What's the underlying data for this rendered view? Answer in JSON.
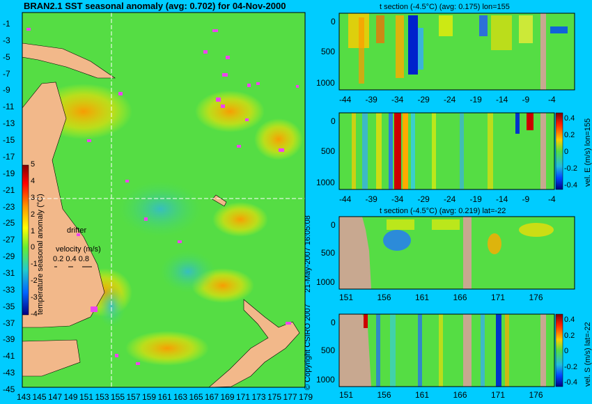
{
  "chart_data": [
    {
      "type": "heatmap",
      "title": "BRAN2.1 SST seasonal anomaly (avg: 0.702) for 04-Nov-2000",
      "x_ticks": [
        "143",
        "145",
        "147",
        "149",
        "151",
        "153",
        "155",
        "157",
        "159",
        "161",
        "163",
        "165",
        "167",
        "169",
        "171",
        "173",
        "175",
        "177",
        "179"
      ],
      "y_ticks": [
        "-1",
        "-3",
        "-5",
        "-7",
        "-9",
        "-11",
        "-13",
        "-15",
        "-17",
        "-19",
        "-21",
        "-23",
        "-25",
        "-27",
        "-29",
        "-31",
        "-33",
        "-35",
        "-37",
        "-39",
        "-41",
        "-43",
        "-45"
      ],
      "colorbar": {
        "label": "temperature seasonal anomaly (°C)",
        "ticks": [
          "5",
          "4",
          "3",
          "2",
          "1",
          "0",
          "-1",
          "-2",
          "-3",
          "-4"
        ]
      },
      "legend": {
        "drifter": "drifter",
        "velocity_label": "velocity (m/s)",
        "velocity_values": "0.2 0.4 0.8"
      },
      "crosshair": {
        "lon": 155,
        "lat": -22
      }
    },
    {
      "type": "heatmap",
      "title": "t section (-4.5°C) (avg: 0.175) lon=155",
      "x_ticks": [
        "-44",
        "-39",
        "-34",
        "-29",
        "-24",
        "-19",
        "-14",
        "-9",
        "-4"
      ],
      "y_ticks": [
        "0",
        "500",
        "1000"
      ]
    },
    {
      "type": "heatmap",
      "title": "vel. E (m/s) lon=155",
      "x_ticks": [
        "-44",
        "-39",
        "-34",
        "-29",
        "-24",
        "-19",
        "-14",
        "-9",
        "-4"
      ],
      "y_ticks": [
        "0",
        "500",
        "1000"
      ],
      "colorbar": {
        "label": "vel. E (m/s) lon=155",
        "ticks": [
          "0.4",
          "0.2",
          "0",
          "-0.2",
          "-0.4"
        ]
      }
    },
    {
      "type": "heatmap",
      "title": "t section (-4.5°C) (avg: 0.219) lat=-22",
      "x_ticks": [
        "151",
        "156",
        "161",
        "166",
        "171",
        "176"
      ],
      "y_ticks": [
        "0",
        "500",
        "1000"
      ]
    },
    {
      "type": "heatmap",
      "title": "vel. S (m/s) lat=-22",
      "x_ticks": [
        "151",
        "156",
        "161",
        "166",
        "171",
        "176"
      ],
      "y_ticks": [
        "0",
        "500",
        "1000"
      ],
      "colorbar": {
        "label": "vel. S (m/s) lat=-22",
        "ticks": [
          "0.4",
          "0.2",
          "0",
          "-0.2",
          "-0.4"
        ]
      }
    }
  ],
  "copyright": "© Copyright CSIRO 2007",
  "timestamp": "21-May-2007 16:05:08"
}
